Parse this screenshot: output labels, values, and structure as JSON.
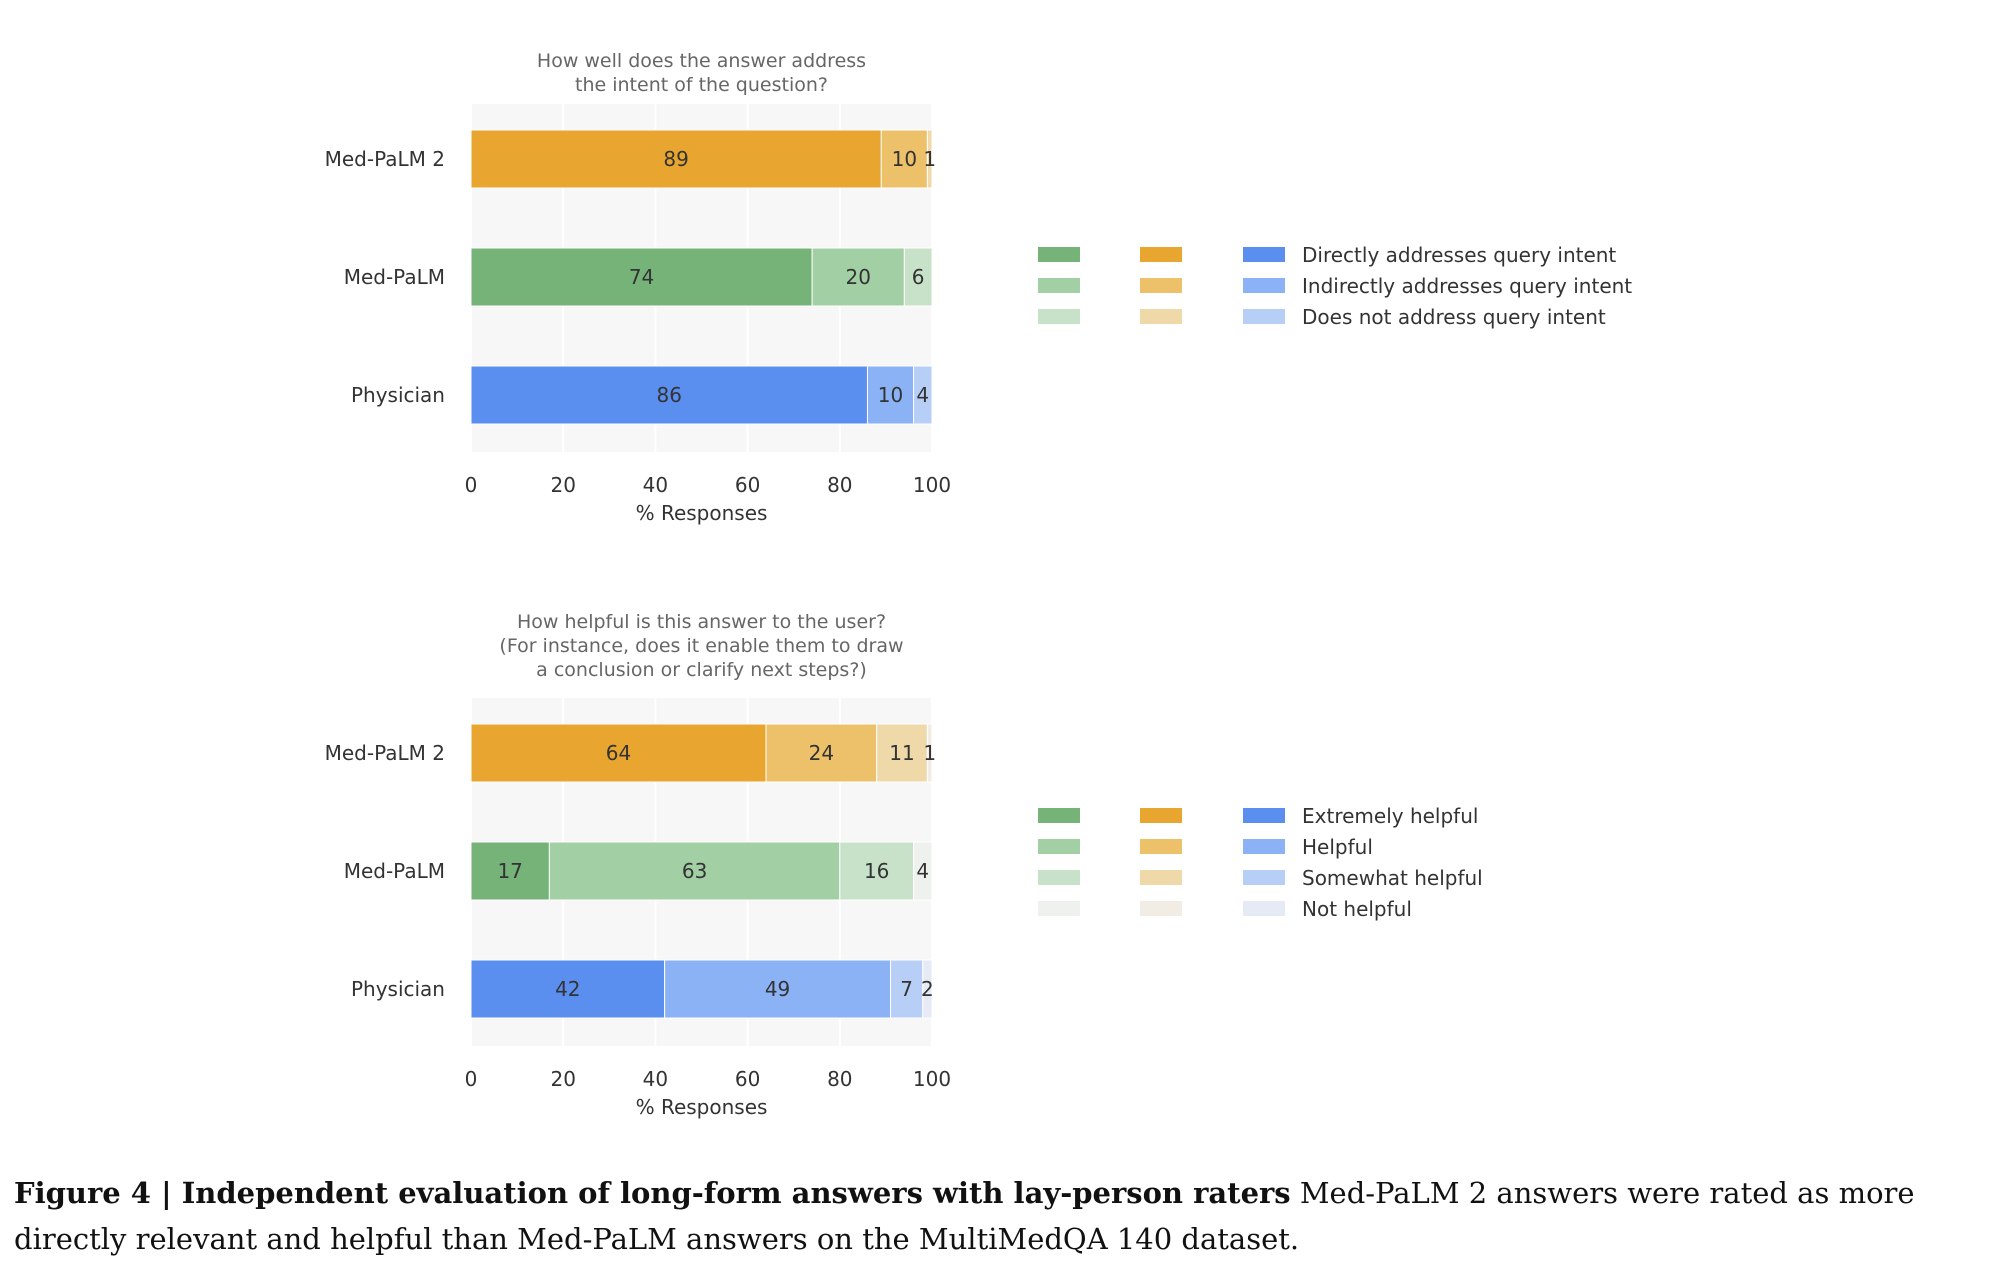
{
  "chart_data": [
    {
      "type": "bar",
      "orientation": "horizontal",
      "stacked": true,
      "title": "How well does the answer address\nthe intent of the question?",
      "xlabel": "% Responses",
      "ylabel": "",
      "xlim": [
        0,
        100
      ],
      "xticks": [
        0,
        20,
        40,
        60,
        80,
        100
      ],
      "categories": [
        "Med-PaLM 2",
        "Med-PaLM",
        "Physician"
      ],
      "series": [
        {
          "name": "Directly addresses query intent",
          "values": [
            89,
            74,
            86
          ]
        },
        {
          "name": "Indirectly addresses query intent",
          "values": [
            10,
            20,
            10
          ]
        },
        {
          "name": "Does not address query intent",
          "values": [
            1,
            6,
            4
          ]
        }
      ],
      "grid": true,
      "legend_position": "right"
    },
    {
      "type": "bar",
      "orientation": "horizontal",
      "stacked": true,
      "title": "How helpful is this answer to the user?\n(For instance, does it enable them to draw\na conclusion or clarify next steps?)",
      "xlabel": "% Responses",
      "ylabel": "",
      "xlim": [
        0,
        100
      ],
      "xticks": [
        0,
        20,
        40,
        60,
        80,
        100
      ],
      "categories": [
        "Med-PaLM 2",
        "Med-PaLM",
        "Physician"
      ],
      "series": [
        {
          "name": "Extremely helpful",
          "values": [
            64,
            17,
            42
          ]
        },
        {
          "name": "Helpful",
          "values": [
            24,
            63,
            49
          ]
        },
        {
          "name": "Somewhat helpful",
          "values": [
            11,
            16,
            7
          ]
        },
        {
          "name": "Not helpful",
          "values": [
            1,
            4,
            2
          ]
        }
      ],
      "grid": true,
      "legend_position": "right"
    }
  ],
  "colors": {
    "orange": [
      "#e8a530",
      "#edc16a",
      "#f0d9a9",
      "#f2ede4"
    ],
    "green": [
      "#76b379",
      "#a2cfa4",
      "#c7e2c8",
      "#eef1ee"
    ],
    "blue": [
      "#5a8ff0",
      "#8ab2f5",
      "#b7cff7",
      "#e6eaf4"
    ],
    "grey": "#eeeeee",
    "plot_bg": "#f7f7f7",
    "text": "#333333",
    "title_text": "#666666"
  },
  "caption": {
    "label": "Figure 4 | Independent evaluation of long-form answers with lay-person raters",
    "text": " Med-PaLM 2 answers were rated as more directly relevant and helpful than Med-PaLM answers on the MultiMedQA 140 dataset."
  }
}
